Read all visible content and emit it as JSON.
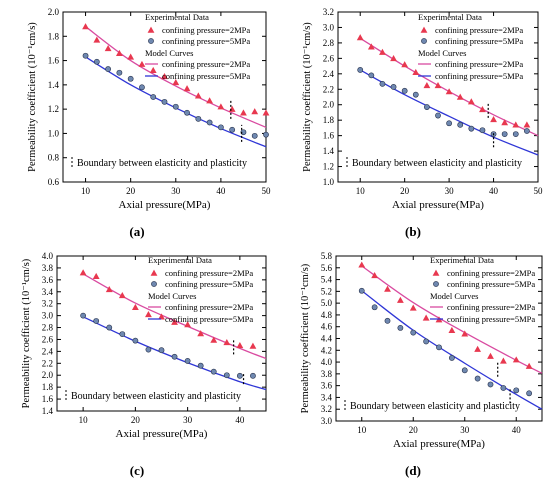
{
  "figure": {
    "xlabel": "Axial pressure(MPa)",
    "ylabel": "Permeability coefficient (10⁻¹cm/s)",
    "legend": {
      "experimental_title": "Experimental Data",
      "model_title": "Model Curves",
      "series2_label": "confining pressure=2MPa",
      "series5_label": "confining pressure=5MPa"
    },
    "boundary_note": "Boundary between elasticity and plasticity",
    "colors": {
      "series2": "#e8384f",
      "series5": "#3b46c8",
      "curve2": "#d94aa0",
      "curve5": "#2f36d6",
      "marker5_fill": "#6f88b0"
    }
  },
  "chart_data": [
    {
      "panel_label": "(a)",
      "type": "scatter",
      "xlim": [
        5,
        50
      ],
      "ylim": [
        0.6,
        2.0
      ],
      "xticks": [
        10,
        20,
        30,
        40,
        50
      ],
      "yticks": [
        0.6,
        0.8,
        1.0,
        1.2,
        1.4,
        1.6,
        1.8,
        2.0
      ],
      "series": [
        {
          "name": "confining pressure=2MPa",
          "kind": "experimental",
          "x": [
            10,
            12.5,
            15,
            17.5,
            20,
            22.5,
            25,
            27.5,
            30,
            32.5,
            35,
            37.5,
            40,
            42.5,
            45,
            47.5,
            50
          ],
          "y": [
            1.88,
            1.77,
            1.7,
            1.66,
            1.63,
            1.57,
            1.52,
            1.47,
            1.42,
            1.37,
            1.31,
            1.27,
            1.22,
            1.2,
            1.17,
            1.18,
            1.17
          ]
        },
        {
          "name": "confining pressure=5MPa",
          "kind": "experimental",
          "x": [
            10,
            12.5,
            15,
            17.5,
            20,
            22.5,
            25,
            27.5,
            30,
            32.5,
            35,
            37.5,
            40,
            42.5,
            45,
            47.5,
            50
          ],
          "y": [
            1.64,
            1.59,
            1.53,
            1.5,
            1.45,
            1.38,
            1.3,
            1.26,
            1.22,
            1.17,
            1.12,
            1.09,
            1.05,
            1.03,
            1.01,
            0.98,
            0.99
          ]
        },
        {
          "name": "confining pressure=2MPa",
          "kind": "model",
          "x": [
            10,
            20,
            30,
            40,
            50
          ],
          "y": [
            1.88,
            1.6,
            1.39,
            1.21,
            1.05
          ]
        },
        {
          "name": "confining pressure=5MPa",
          "kind": "model",
          "x": [
            10,
            20,
            30,
            40,
            50
          ],
          "y": [
            1.63,
            1.4,
            1.21,
            1.04,
            0.89
          ]
        }
      ],
      "boundary_markers": [
        {
          "x": 42.2,
          "y": [
            1.12,
            1.28
          ]
        },
        {
          "x": 44.6,
          "y": [
            0.93,
            1.07
          ]
        }
      ]
    },
    {
      "panel_label": "(b)",
      "type": "scatter",
      "xlim": [
        5,
        50
      ],
      "ylim": [
        1.0,
        3.2
      ],
      "xticks": [
        10,
        20,
        30,
        40,
        50
      ],
      "yticks": [
        1.0,
        1.2,
        1.4,
        1.6,
        1.8,
        2.0,
        2.2,
        2.4,
        2.6,
        2.8,
        3.0,
        3.2
      ],
      "series": [
        {
          "name": "confining pressure=2MPa",
          "kind": "experimental",
          "x": [
            10,
            12.5,
            15,
            17.5,
            20,
            22.5,
            25,
            27.5,
            30,
            32.5,
            35,
            37.5,
            40,
            42.5,
            45,
            47.5
          ],
          "y": [
            2.87,
            2.75,
            2.68,
            2.6,
            2.52,
            2.42,
            2.25,
            2.25,
            2.17,
            2.1,
            2.04,
            1.94,
            1.81,
            1.77,
            1.74,
            1.74
          ]
        },
        {
          "name": "confining pressure=5MPa",
          "kind": "experimental",
          "x": [
            10,
            12.5,
            15,
            17.5,
            20,
            22.5,
            25,
            27.5,
            30,
            32.5,
            35,
            37.5,
            40,
            42.5,
            45,
            47.5
          ],
          "y": [
            2.45,
            2.38,
            2.27,
            2.23,
            2.18,
            2.13,
            1.97,
            1.86,
            1.76,
            1.74,
            1.69,
            1.67,
            1.62,
            1.62,
            1.62,
            1.66
          ]
        },
        {
          "name": "confining pressure=2MPa",
          "kind": "model",
          "x": [
            10,
            20,
            30,
            40,
            50
          ],
          "y": [
            2.86,
            2.5,
            2.17,
            1.87,
            1.6
          ]
        },
        {
          "name": "confining pressure=5MPa",
          "kind": "model",
          "x": [
            10,
            20,
            30,
            40,
            50
          ],
          "y": [
            2.45,
            2.13,
            1.85,
            1.58,
            1.35
          ]
        }
      ],
      "boundary_markers": [
        {
          "x": 38.8,
          "y": [
            1.83,
            2.02
          ]
        },
        {
          "x": 40.0,
          "y": [
            1.45,
            1.64
          ]
        }
      ]
    },
    {
      "panel_label": "(c)",
      "type": "scatter",
      "xlim": [
        5,
        45
      ],
      "ylim": [
        1.4,
        4.0
      ],
      "xticks": [
        10,
        20,
        30,
        40
      ],
      "yticks": [
        1.4,
        1.6,
        1.8,
        2.0,
        2.2,
        2.4,
        2.6,
        2.8,
        3.0,
        3.2,
        3.4,
        3.6,
        3.8,
        4.0
      ],
      "series": [
        {
          "name": "confining pressure=2MPa",
          "kind": "experimental",
          "x": [
            10,
            12.5,
            15,
            17.5,
            20,
            22.5,
            25,
            27.5,
            30,
            32.5,
            35,
            37.5,
            40,
            42.5
          ],
          "y": [
            3.72,
            3.66,
            3.44,
            3.34,
            3.14,
            3.02,
            2.98,
            2.89,
            2.85,
            2.7,
            2.59,
            2.55,
            2.5,
            2.49
          ]
        },
        {
          "name": "confining pressure=5MPa",
          "kind": "experimental",
          "x": [
            10,
            12.5,
            15,
            17.5,
            20,
            22.5,
            25,
            27.5,
            30,
            32.5,
            35,
            37.5,
            40,
            42.5
          ],
          "y": [
            3.0,
            2.91,
            2.8,
            2.69,
            2.58,
            2.43,
            2.42,
            2.31,
            2.24,
            2.16,
            2.06,
            2.0,
            1.99,
            1.99
          ]
        },
        {
          "name": "confining pressure=2MPa",
          "kind": "model",
          "x": [
            10,
            20,
            30,
            40,
            45
          ],
          "y": [
            3.7,
            3.21,
            2.82,
            2.45,
            2.28
          ]
        },
        {
          "name": "confining pressure=5MPa",
          "kind": "model",
          "x": [
            10,
            20,
            30,
            40,
            45
          ],
          "y": [
            2.98,
            2.57,
            2.21,
            1.89,
            1.76
          ]
        }
      ],
      "boundary_markers": [
        {
          "x": 38.8,
          "y": [
            2.35,
            2.6
          ]
        },
        {
          "x": 40.7,
          "y": [
            1.85,
            2.02
          ]
        }
      ]
    },
    {
      "panel_label": "(d)",
      "type": "scatter",
      "xlim": [
        5,
        45
      ],
      "ylim": [
        3.0,
        5.8
      ],
      "xticks": [
        10,
        20,
        30,
        40
      ],
      "yticks": [
        3.0,
        3.2,
        3.4,
        3.6,
        3.8,
        4.0,
        4.2,
        4.4,
        4.6,
        4.8,
        5.0,
        5.2,
        5.4,
        5.6,
        5.8
      ],
      "series": [
        {
          "name": "confining pressure=2MPa",
          "kind": "experimental",
          "x": [
            10,
            12.5,
            15,
            17.5,
            20,
            22.5,
            25,
            27.5,
            30,
            32.5,
            35,
            37.5,
            40,
            42.5
          ],
          "y": [
            5.65,
            5.47,
            5.24,
            5.05,
            4.92,
            4.75,
            4.72,
            4.54,
            4.48,
            4.22,
            4.1,
            4.02,
            4.04,
            3.93
          ]
        },
        {
          "name": "confining pressure=5MPa",
          "kind": "experimental",
          "x": [
            10,
            12.5,
            15,
            17.5,
            20,
            22.5,
            25,
            27.5,
            30,
            32.5,
            35,
            37.5,
            40,
            42.5
          ],
          "y": [
            5.21,
            4.93,
            4.7,
            4.58,
            4.5,
            4.35,
            4.25,
            4.07,
            3.86,
            3.72,
            3.62,
            3.56,
            3.52,
            3.47
          ]
        },
        {
          "name": "confining pressure=2MPa",
          "kind": "model",
          "x": [
            10,
            20,
            30,
            40,
            45
          ],
          "y": [
            5.63,
            5.01,
            4.5,
            4.03,
            3.81
          ]
        },
        {
          "name": "confining pressure=5MPa",
          "kind": "model",
          "x": [
            10,
            20,
            30,
            40,
            45
          ],
          "y": [
            5.21,
            4.54,
            3.98,
            3.45,
            3.2
          ]
        }
      ],
      "boundary_markers": [
        {
          "x": 36.4,
          "y": [
            3.75,
            4.0
          ]
        },
        {
          "x": 38.8,
          "y": [
            3.3,
            3.55
          ]
        }
      ]
    }
  ]
}
